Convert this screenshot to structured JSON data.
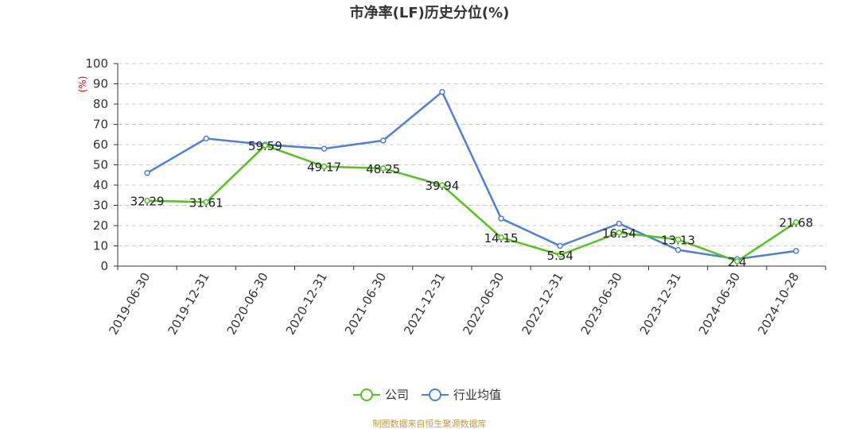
{
  "colors": {
    "company": "#52c41a",
    "industry": "#4e7fde",
    "unit": "#ff0000",
    "source": "#c89a3c",
    "grid": "#cccccc",
    "axis": "#333333"
  },
  "chart_data": {
    "type": "line",
    "title": "市净率(LF)历史分位(%)",
    "ylabel": "(%)",
    "ylim": [
      0,
      100
    ],
    "yticks": [
      0,
      10,
      20,
      30,
      40,
      50,
      60,
      70,
      80,
      90,
      100
    ],
    "grid": "horizontal dashed",
    "legend_position": "bottom-center",
    "categories": [
      "2019-06-30",
      "2019-12-31",
      "2020-06-30",
      "2020-12-31",
      "2021-06-30",
      "2021-12-31",
      "2022-06-30",
      "2022-12-31",
      "2023-06-30",
      "2023-12-31",
      "2024-06-30",
      "2024-10-28"
    ],
    "series": [
      {
        "name": "公司",
        "values": [
          32.29,
          31.61,
          59.59,
          49.17,
          48.25,
          39.94,
          14.15,
          5.54,
          16.54,
          13.13,
          2.4,
          21.68
        ],
        "labels": [
          "32.29",
          "31.61",
          "59.59",
          "49.17",
          "48.25",
          "39.94",
          "14.15",
          "5.54",
          "16.54",
          "13.13",
          "2.4",
          "21.68"
        ]
      },
      {
        "name": "行业均值",
        "values": [
          46,
          63,
          60,
          58,
          62,
          86,
          23.5,
          10,
          21,
          8,
          3.5,
          7.5
        ]
      }
    ]
  },
  "footer": {
    "source": "制图数据来自恒生聚源数据库"
  }
}
